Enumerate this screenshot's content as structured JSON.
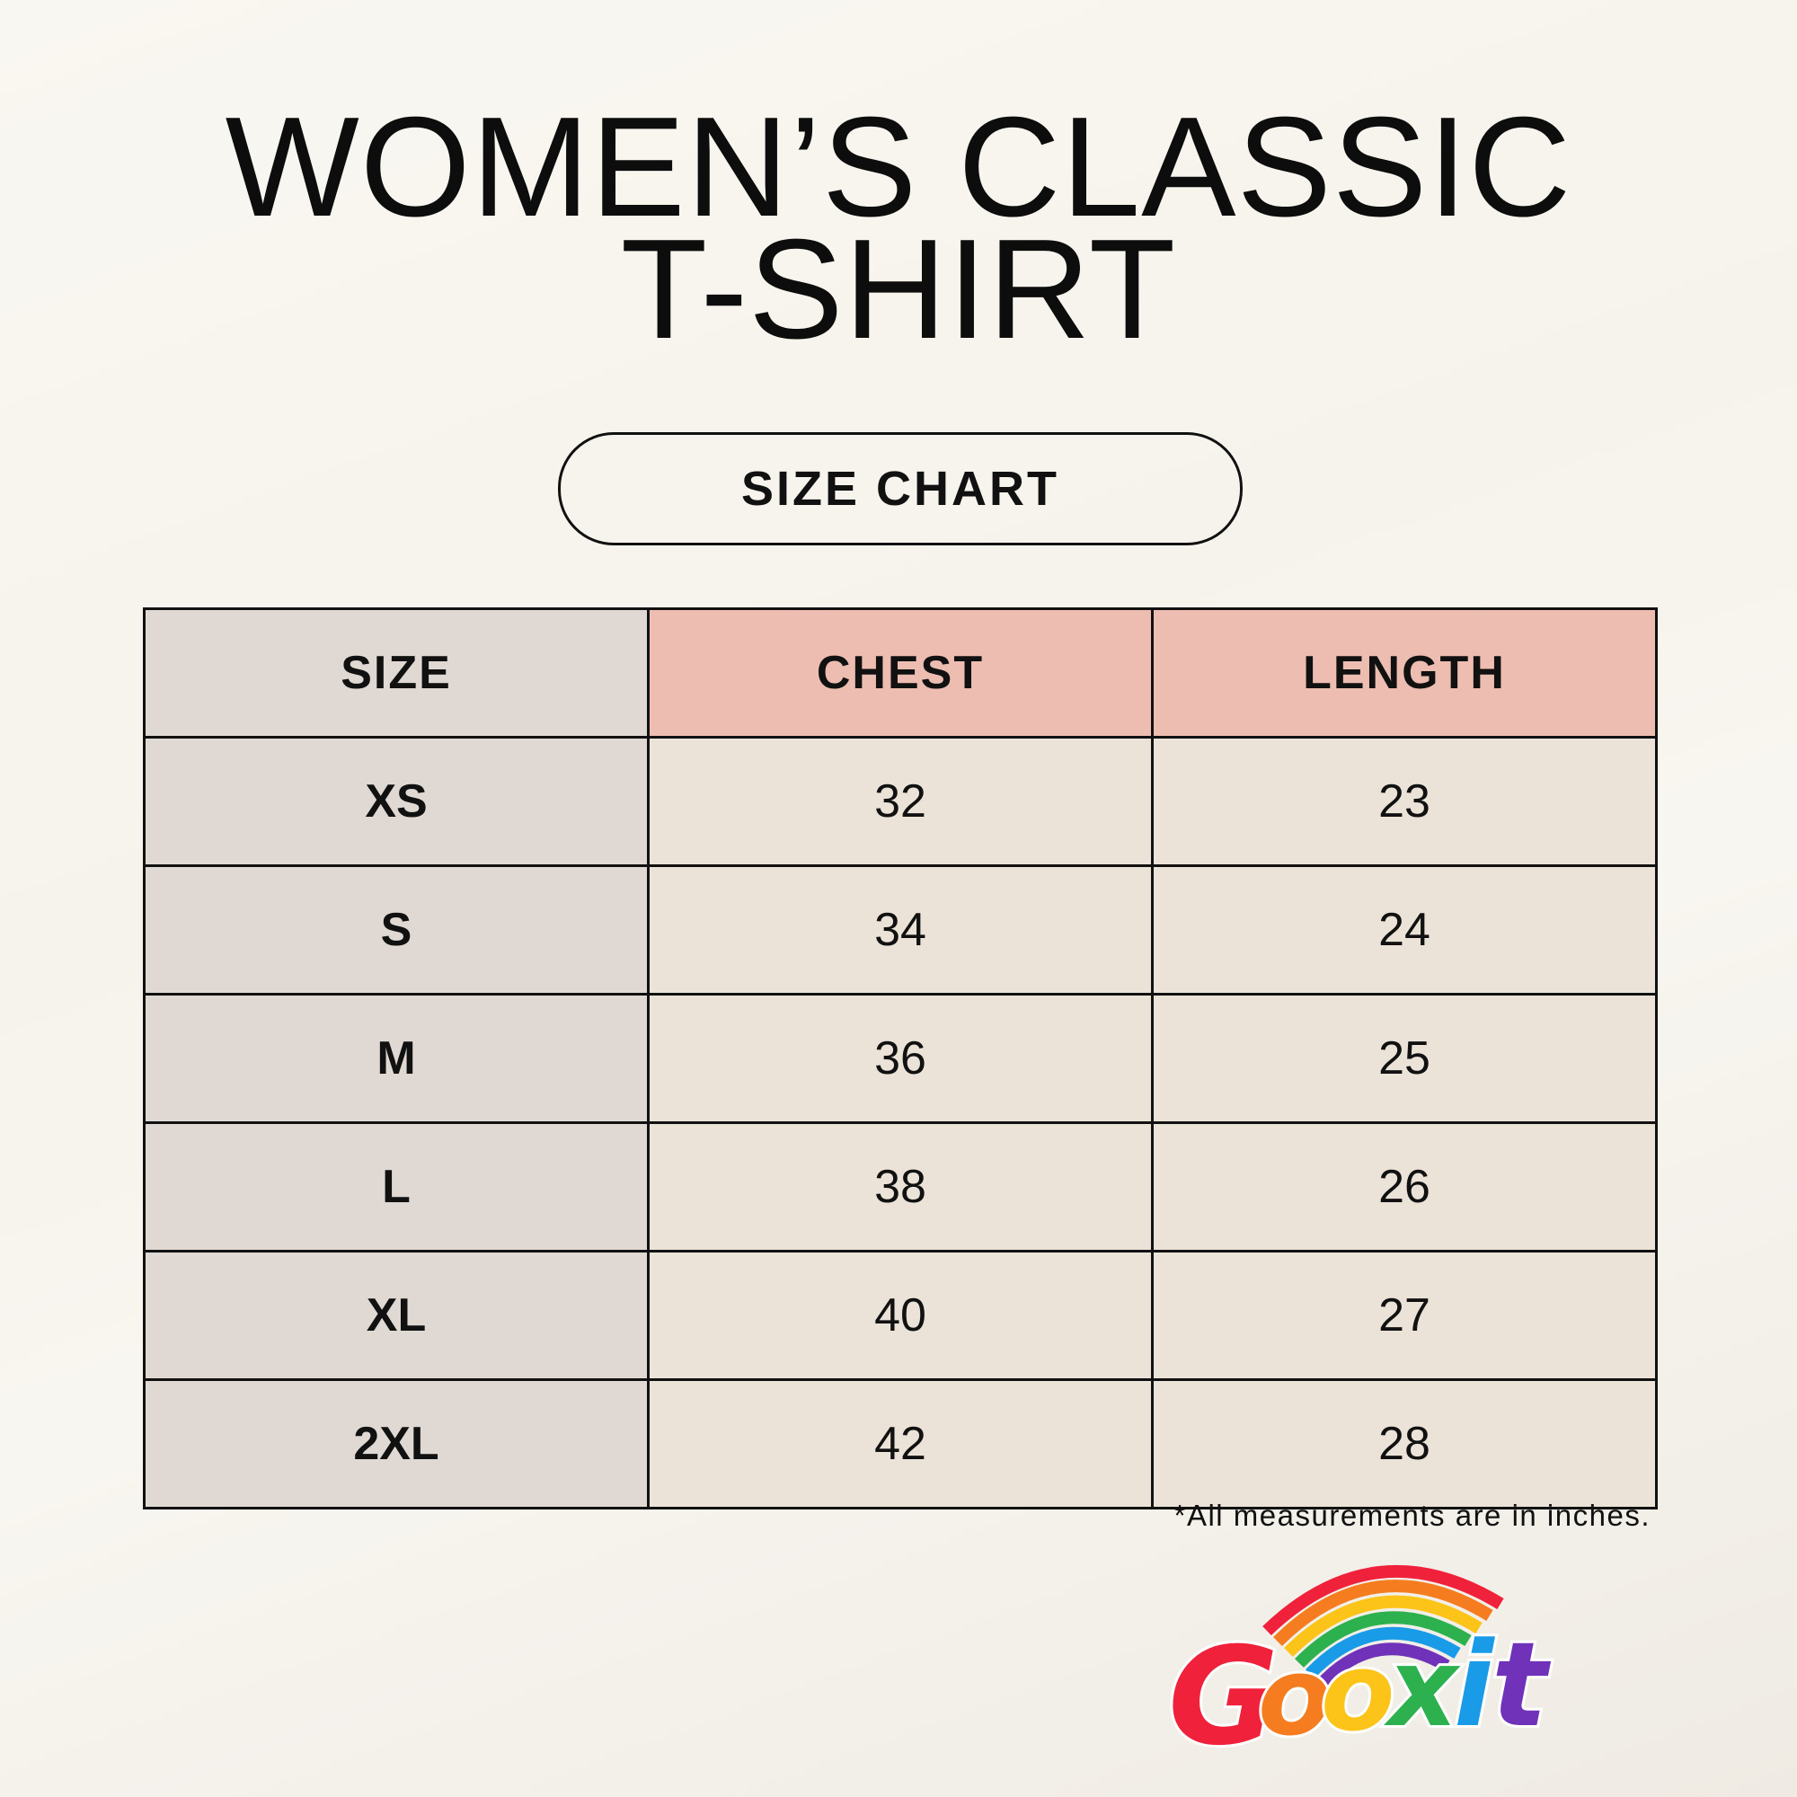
{
  "title": {
    "line1": "WOMEN’S CLASSIC",
    "line2": "T-SHIRT"
  },
  "badge": "SIZE CHART",
  "table": {
    "headers": [
      "SIZE",
      "CHEST",
      "LENGTH"
    ],
    "rows": [
      [
        "XS",
        "32",
        "23"
      ],
      [
        "S",
        "34",
        "24"
      ],
      [
        "M",
        "36",
        "25"
      ],
      [
        "L",
        "38",
        "26"
      ],
      [
        "XL",
        "40",
        "27"
      ],
      [
        "2XL",
        "42",
        "28"
      ]
    ]
  },
  "footnote": "*All measurements are in inches.",
  "logo": {
    "text": "Gooxit",
    "colors": [
      "#f0213a",
      "#f57c1f",
      "#fcc419",
      "#2db14f",
      "#1a9be8",
      "#6f32b8"
    ]
  },
  "colors": {
    "size_column": "#e0d9d3",
    "header_accent": "#ecbdb0",
    "value_cells": "#ebe3d8"
  }
}
